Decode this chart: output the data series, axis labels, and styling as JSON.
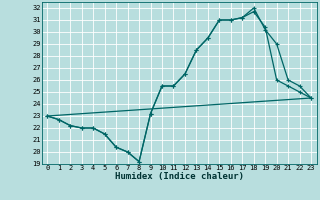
{
  "xlabel": "Humidex (Indice chaleur)",
  "background_color": "#b8dede",
  "grid_color": "#ffffff",
  "line_color": "#006666",
  "xlim": [
    -0.5,
    23.5
  ],
  "ylim": [
    19,
    32.5
  ],
  "xticks": [
    0,
    1,
    2,
    3,
    4,
    5,
    6,
    7,
    8,
    9,
    10,
    11,
    12,
    13,
    14,
    15,
    16,
    17,
    18,
    19,
    20,
    21,
    22,
    23
  ],
  "yticks": [
    19,
    20,
    21,
    22,
    23,
    24,
    25,
    26,
    27,
    28,
    29,
    30,
    31,
    32
  ],
  "line1_x": [
    0,
    1,
    2,
    3,
    4,
    5,
    6,
    7,
    8,
    9,
    10,
    11,
    12,
    13,
    14,
    15,
    16,
    17,
    18,
    19,
    20,
    21,
    22,
    23
  ],
  "line1_y": [
    23.0,
    22.7,
    22.2,
    22.0,
    22.0,
    21.5,
    20.4,
    20.0,
    19.2,
    23.2,
    25.5,
    25.5,
    26.5,
    28.5,
    29.5,
    31.0,
    31.0,
    31.2,
    31.7,
    30.4,
    26.0,
    25.5,
    25.0,
    24.5
  ],
  "line2_x": [
    0,
    1,
    2,
    3,
    4,
    5,
    6,
    7,
    8,
    9,
    10,
    11,
    12,
    13,
    14,
    15,
    16,
    17,
    18,
    19,
    20,
    21,
    22,
    23
  ],
  "line2_y": [
    23.0,
    22.7,
    22.2,
    22.0,
    22.0,
    21.5,
    20.4,
    20.0,
    19.2,
    23.2,
    25.5,
    25.5,
    26.5,
    28.5,
    29.5,
    31.0,
    31.0,
    31.2,
    32.0,
    30.2,
    29.0,
    26.0,
    25.5,
    24.5
  ],
  "line3_x": [
    0,
    23
  ],
  "line3_y": [
    23.0,
    24.5
  ],
  "linewidth": 0.9,
  "tick_fontsize": 5,
  "label_fontsize": 6.5
}
